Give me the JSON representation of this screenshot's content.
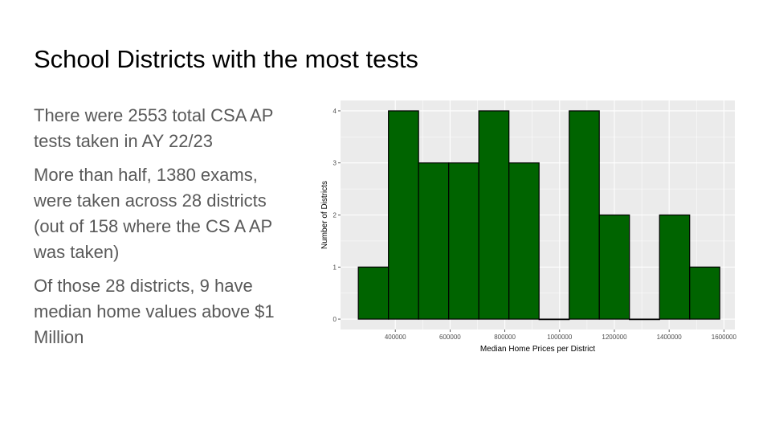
{
  "slide": {
    "title": "School Districts with the most tests",
    "paragraphs": [
      "There were 2553 total CSA AP tests taken in AY 22/23",
      "More than half, 1380 exams, were taken across 28 districts (out of 158 where the CS A AP was taken)",
      "Of those 28 districts, 9 have median home values above $1 Million"
    ]
  },
  "colors": {
    "bar_fill": "#006400",
    "bar_stroke": "#000000",
    "panel_bg": "#EBEBEB",
    "grid": "#FFFFFF",
    "tick_text": "#4D4D4D"
  },
  "chart_data": {
    "type": "bar",
    "subtype": "histogram",
    "xlabel": "Median Home Prices per District",
    "ylabel": "Number of Districts",
    "bins": [
      {
        "x0": 265000,
        "x1": 375000,
        "count": 1
      },
      {
        "x0": 375000,
        "x1": 485000,
        "count": 4
      },
      {
        "x0": 485000,
        "x1": 595000,
        "count": 3
      },
      {
        "x0": 595000,
        "x1": 705000,
        "count": 3
      },
      {
        "x0": 705000,
        "x1": 815000,
        "count": 4
      },
      {
        "x0": 815000,
        "x1": 925000,
        "count": 3
      },
      {
        "x0": 925000,
        "x1": 1035000,
        "count": 0
      },
      {
        "x0": 1035000,
        "x1": 1145000,
        "count": 4
      },
      {
        "x0": 1145000,
        "x1": 1255000,
        "count": 2
      },
      {
        "x0": 1255000,
        "x1": 1365000,
        "count": 0
      },
      {
        "x0": 1365000,
        "x1": 1475000,
        "count": 2
      },
      {
        "x0": 1475000,
        "x1": 1585000,
        "count": 1
      }
    ],
    "x_ticks": [
      400000,
      600000,
      800000,
      1000000,
      1200000,
      1400000,
      1600000
    ],
    "x_tick_labels": [
      "400000",
      "600000",
      "800000",
      "1000000",
      "1200000",
      "1400000",
      "1600000"
    ],
    "y_ticks": [
      0,
      1,
      2,
      3,
      4
    ],
    "y_tick_labels": [
      "0",
      "1",
      "2",
      "3",
      "4"
    ],
    "xlim": [
      200000,
      1640000
    ],
    "ylim": [
      -0.2,
      4.2
    ],
    "grid": true,
    "legend": "none"
  }
}
